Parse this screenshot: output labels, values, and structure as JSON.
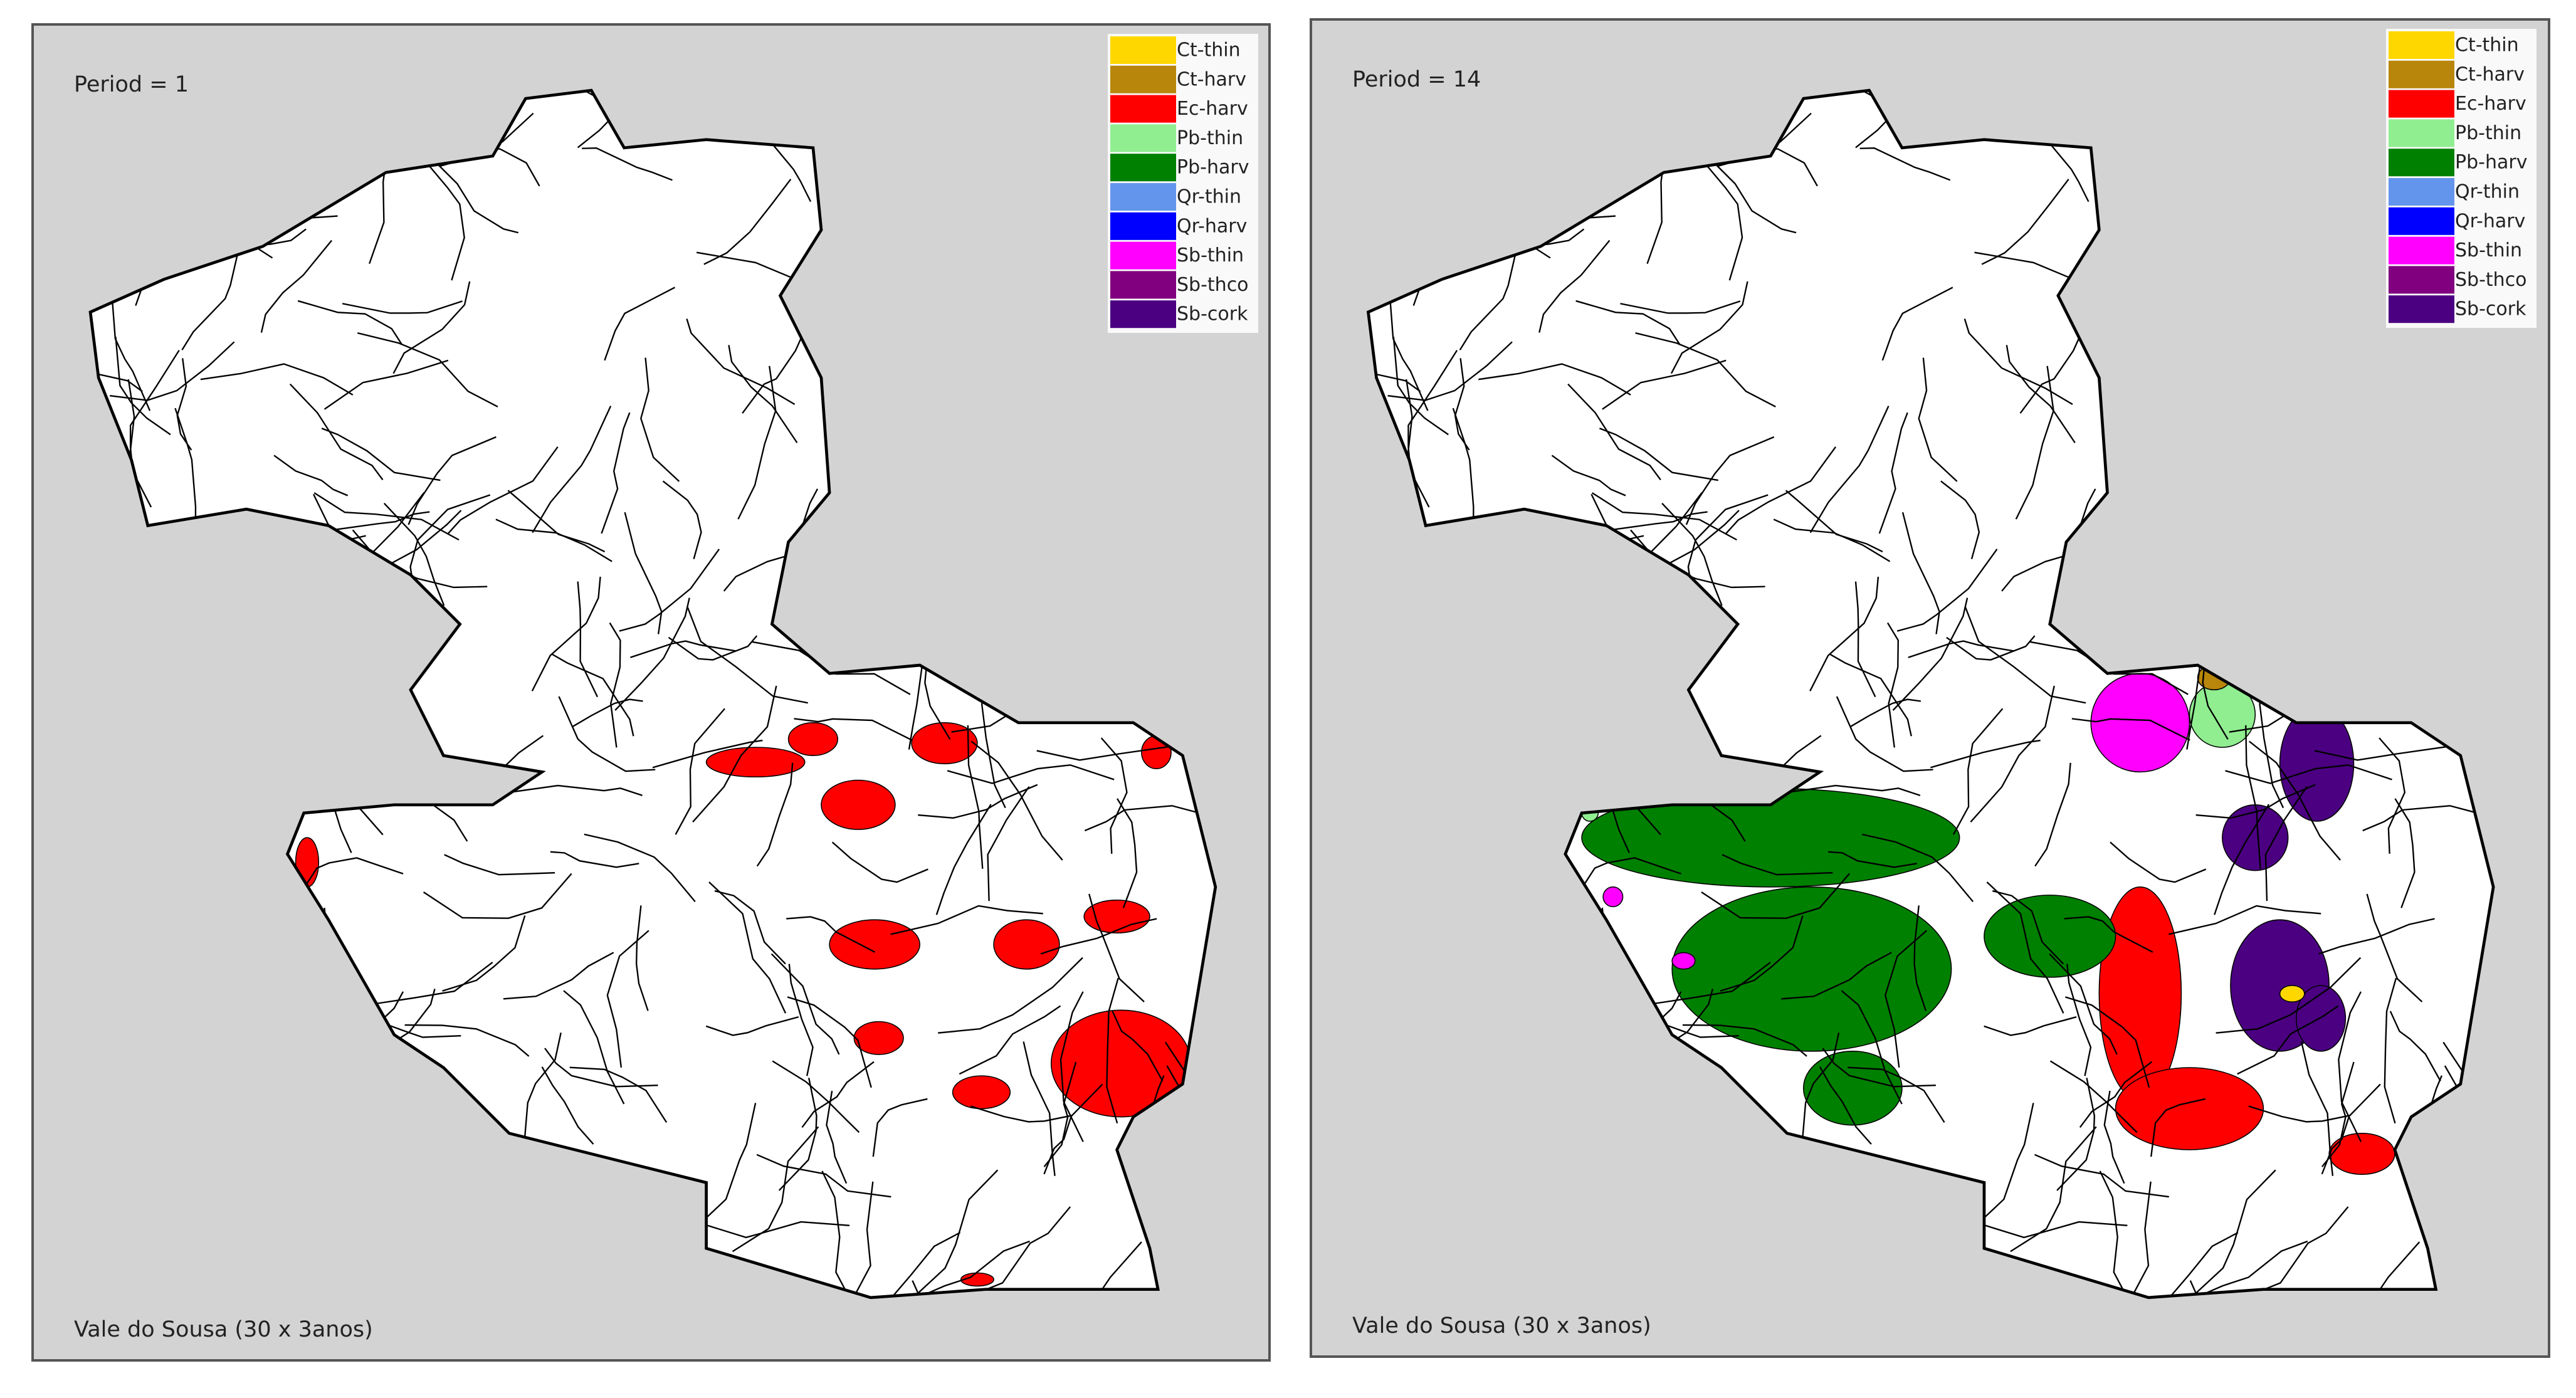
{
  "panels": [
    {
      "period_label": "Period = 1",
      "caption": "Vale do Sousa (30 x 3anos)",
      "legend": [
        {
          "label": "Ct-thin",
          "color": "#ffd700"
        },
        {
          "label": "Ct-harv",
          "color": "#b8860b"
        },
        {
          "label": "Ec-harv",
          "color": "#ff0000"
        },
        {
          "label": "Pb-thin",
          "color": "#90ee90"
        },
        {
          "label": "Pb-harv",
          "color": "#008000"
        },
        {
          "label": "Qr-thin",
          "color": "#6495ed"
        },
        {
          "label": "Qr-harv",
          "color": "#0000ff"
        },
        {
          "label": "Sb-thin",
          "color": "#ff00ff"
        },
        {
          "label": "Sb-thco",
          "color": "#800080"
        },
        {
          "label": "Sb-cork",
          "color": "#4b0082"
        }
      ]
    },
    {
      "period_label": "Period = 14",
      "caption": "Vale do Sousa (30 x 3anos)",
      "legend": [
        {
          "label": "Ct-thin",
          "color": "#ffd700"
        },
        {
          "label": "Ct-harv",
          "color": "#b8860b"
        },
        {
          "label": "Ec-harv",
          "color": "#ff0000"
        },
        {
          "label": "Pb-thin",
          "color": "#90ee90"
        },
        {
          "label": "Pb-harv",
          "color": "#008000"
        },
        {
          "label": "Qr-thin",
          "color": "#6495ed"
        },
        {
          "label": "Qr-harv",
          "color": "#0000ff"
        },
        {
          "label": "Sb-thin",
          "color": "#ff00ff"
        },
        {
          "label": "Sb-thco",
          "color": "#800080"
        },
        {
          "label": "Sb-cork",
          "color": "#4b0082"
        }
      ]
    }
  ]
}
